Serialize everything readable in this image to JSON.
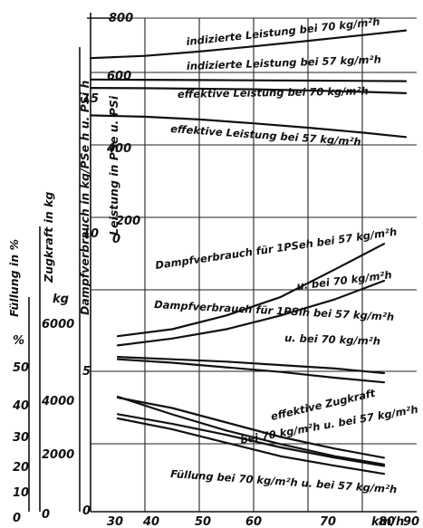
{
  "chart_data": {
    "type": "line",
    "title": "",
    "xlabel": "km/h",
    "grid": true,
    "x_ticks": [
      "30",
      "40",
      "50",
      "60",
      "70",
      "80",
      "90"
    ],
    "xlim": [
      30,
      90
    ],
    "axes": {
      "leistung": {
        "label": "Leistung in PSe u. PSi",
        "ticks": [
          "800",
          "600",
          "400",
          "200",
          "0"
        ],
        "range": [
          0,
          800
        ]
      },
      "dampfverbrauch": {
        "label": "Dampfverbrauch in kg/PSe h u. PSi h",
        "ticks": [
          "15",
          "10",
          "5",
          "0"
        ],
        "range": [
          0,
          20
        ]
      },
      "zugkraft": {
        "label": "Zugkraft in kg",
        "unit": "kg",
        "ticks": [
          "6000",
          "4000",
          "2000",
          "0"
        ],
        "range": [
          0,
          6800
        ]
      },
      "fuellung": {
        "label": "Füllung in %",
        "unit": "%",
        "ticks": [
          "50",
          "40",
          "30",
          "20",
          "10",
          "0"
        ],
        "range": [
          0,
          55
        ]
      }
    },
    "series": [
      {
        "name": "indizierte Leistung bei 70 kg/m²h",
        "axis": "leistung",
        "x": [
          30,
          40,
          50,
          60,
          70,
          80,
          88
        ],
        "y": [
          654,
          662,
          678,
          697,
          717,
          738,
          755
        ]
      },
      {
        "name": "indizierte Leistung bei 57 kg/m²h",
        "axis": "leistung",
        "x": [
          30,
          40,
          50,
          60,
          70,
          80,
          88
        ],
        "y": [
          576,
          575,
          574,
          573,
          572,
          571,
          570
        ]
      },
      {
        "name": "effektive Leistung bei 70 kg/m²h",
        "axis": "leistung",
        "x": [
          30,
          40,
          50,
          60,
          70,
          80,
          88
        ],
        "y": [
          545,
          544,
          542,
          540,
          536,
          531,
          526
        ]
      },
      {
        "name": "effektive Leistung bei 57 kg/m²h",
        "axis": "leistung",
        "x": [
          30,
          40,
          50,
          60,
          70,
          80,
          88
        ],
        "y": [
          445,
          440,
          430,
          416,
          400,
          382,
          366
        ]
      },
      {
        "name": "Dampfverbrauch für 1PSeh bei 57 kg/m²h",
        "axis": "dampfverbrauch",
        "x": [
          35,
          45,
          55,
          65,
          75,
          84
        ],
        "y": [
          7.6,
          7.9,
          8.5,
          9.3,
          10.5,
          11.6
        ]
      },
      {
        "name": "u. bei 70 kg/m²h",
        "axis": "dampfverbrauch",
        "x": [
          35,
          45,
          55,
          65,
          75,
          84
        ],
        "y": [
          7.2,
          7.5,
          7.9,
          8.5,
          9.2,
          10.0
        ]
      },
      {
        "name": "Dampfverbrauch für 1PSih bei 57 kg/m²h",
        "axis": "dampfverbrauch",
        "x": [
          35,
          45,
          55,
          65,
          75,
          84
        ],
        "y": [
          6.7,
          6.6,
          6.5,
          6.35,
          6.2,
          6.0
        ]
      },
      {
        "name": "u. bei 70 kg/m²h",
        "axis": "dampfverbrauch",
        "x": [
          35,
          45,
          55,
          65,
          75,
          84
        ],
        "y": [
          6.6,
          6.45,
          6.25,
          6.05,
          5.8,
          5.6
        ]
      },
      {
        "name": "effektive Zugkraft bei 70 kg/m²h",
        "axis": "zugkraft",
        "x": [
          35,
          45,
          55,
          65,
          75,
          84
        ],
        "y": [
          4250,
          3600,
          3000,
          2500,
          2050,
          1750
        ]
      },
      {
        "name": "effektive Zugkraft u. bei 57 kg/m²h",
        "axis": "zugkraft",
        "x": [
          35,
          45,
          55,
          65,
          75,
          84
        ],
        "y": [
          3450,
          3050,
          2550,
          2050,
          1700,
          1400
        ]
      },
      {
        "name": "Füllung bei 70 kg/m²h",
        "axis": "fuellung",
        "x": [
          35,
          45,
          55,
          65,
          75,
          84
        ],
        "y": [
          27.5,
          25.0,
          21.5,
          18.0,
          15.2,
          13.0
        ]
      },
      {
        "name": "Füllung u. bei 57 kg/m²h",
        "axis": "fuellung",
        "x": [
          35,
          45,
          55,
          65,
          75,
          84
        ],
        "y": [
          23.5,
          21.2,
          18.5,
          15.5,
          13.0,
          11.0
        ]
      }
    ],
    "annotations": [
      {
        "text": "indizierte Leistung bei 70 kg/m²h"
      },
      {
        "text": "indizierte Leistung bei 57 kg/m²h"
      },
      {
        "text": "effektive Leistung bei 70 kg/m²h"
      },
      {
        "text": "effektive Leistung bei 57 kg/m²h"
      },
      {
        "text": "Dampfverbrauch für 1PSeh bei 57 kg/m²h"
      },
      {
        "text": "u. bei 70 kg/m²h"
      },
      {
        "text": "Dampfverbrauch für 1PSih bei 57 kg/m²h"
      },
      {
        "text": "u. bei 70 kg/m²h"
      },
      {
        "text": "effektive Zugkraft"
      },
      {
        "text": "bei 70 kg/m²h u. bei 57 kg/m²h"
      },
      {
        "text": "Füllung bei 70 kg/m²h u. bei 57 kg/m²h"
      }
    ]
  }
}
